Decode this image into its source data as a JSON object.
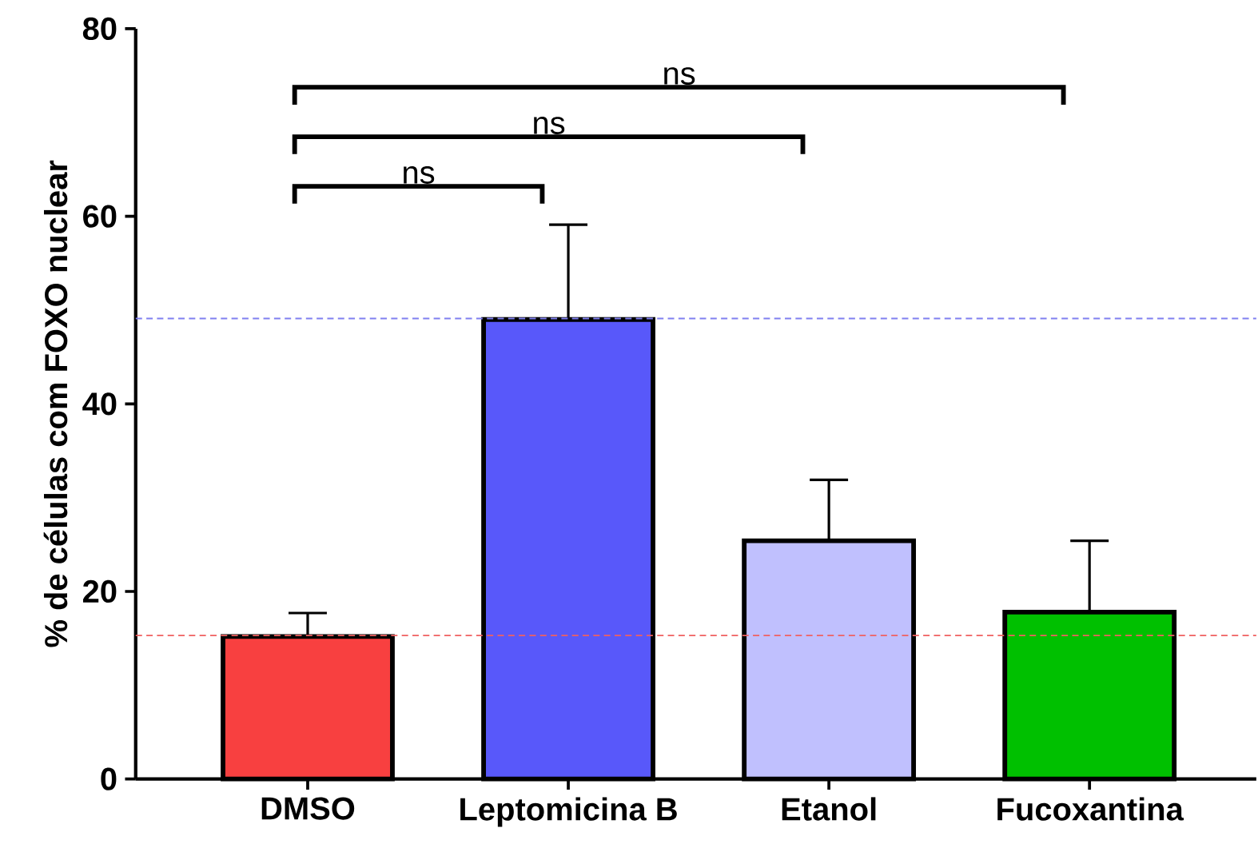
{
  "chart_data": {
    "type": "bar",
    "ylabel": "% de células com FOXO nuclear",
    "categories": [
      "DMSO",
      "Leptomicina B",
      "Etanol",
      "Fucoxantina"
    ],
    "values": [
      15.2,
      49.0,
      25.4,
      17.8
    ],
    "colors": [
      "#f84040",
      "#5858fa",
      "#c0c0fe",
      "#00c000"
    ],
    "errors": [
      [
        15.2,
        17.7
      ],
      [
        49.0,
        59.1
      ],
      [
        25.4,
        31.9
      ],
      [
        17.8,
        25.4
      ]
    ],
    "ylim": [
      0,
      80
    ],
    "yticks": [
      0,
      20,
      40,
      60,
      80
    ],
    "ref_lines": [
      {
        "axis": "y",
        "value": 49.1,
        "color": "#8080f0",
        "line_style": "dashed"
      },
      {
        "axis": "y",
        "value": 15.3,
        "color": "#f06060",
        "line_style": "dashed"
      }
    ],
    "annotations": [
      "ns",
      "ns",
      "ns"
    ]
  }
}
